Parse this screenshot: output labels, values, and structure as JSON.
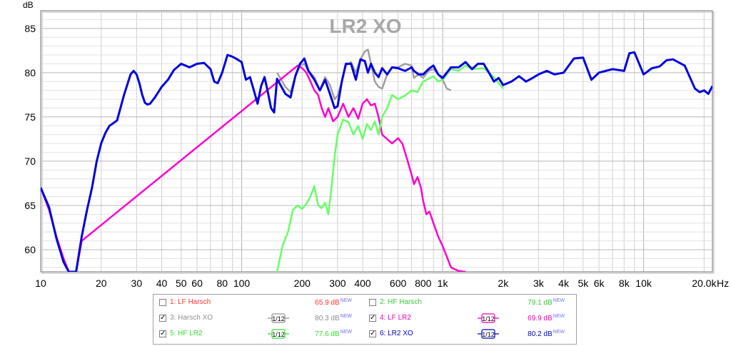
{
  "chart_data": {
    "type": "line",
    "title": "LR2 XO",
    "ylabel": "dB",
    "xlabel": "Hz",
    "xscale": "log",
    "xlim": [
      10,
      22000
    ],
    "ylim": [
      57.5,
      87
    ],
    "grid": true,
    "y_ticks": [
      {
        "v": 60,
        "label": "60"
      },
      {
        "v": 65,
        "label": "65"
      },
      {
        "v": 70,
        "label": "70"
      },
      {
        "v": 75,
        "label": "75"
      },
      {
        "v": 80,
        "label": "80"
      },
      {
        "v": 85,
        "label": "85"
      }
    ],
    "x_ticks": [
      {
        "v": 10,
        "label": "10"
      },
      {
        "v": 20,
        "label": "20"
      },
      {
        "v": 30,
        "label": "30"
      },
      {
        "v": 40,
        "label": "40"
      },
      {
        "v": 50,
        "label": "50"
      },
      {
        "v": 60,
        "label": "60"
      },
      {
        "v": 80,
        "label": "80"
      },
      {
        "v": 100,
        "label": "100"
      },
      {
        "v": 200,
        "label": "200"
      },
      {
        "v": 300,
        "label": "300"
      },
      {
        "v": 400,
        "label": "400"
      },
      {
        "v": 600,
        "label": "600"
      },
      {
        "v": 800,
        "label": "800"
      },
      {
        "v": 1000,
        "label": "1k"
      },
      {
        "v": 2000,
        "label": "2k"
      },
      {
        "v": 3000,
        "label": "3k"
      },
      {
        "v": 4000,
        "label": "4k"
      },
      {
        "v": 5000,
        "label": "5k"
      },
      {
        "v": 6000,
        "label": "6k"
      },
      {
        "v": 8000,
        "label": "8k"
      },
      {
        "v": 10000,
        "label": "10k"
      },
      {
        "v": 20000,
        "label": "20.0k"
      }
    ],
    "series": [
      {
        "name": "3: Harsch XO",
        "color": "#a0a0a0",
        "x": [
          150,
          165,
          175,
          185,
          195,
          205,
          215,
          230,
          245,
          260,
          275,
          290,
          300,
          315,
          330,
          350,
          370,
          390,
          410,
          425,
          440,
          460,
          480,
          500,
          530,
          560,
          600,
          650,
          700,
          720,
          760,
          800,
          850,
          900,
          950,
          1000,
          1050,
          1100
        ],
        "values": [
          80.0,
          78.4,
          77.8,
          79.6,
          80.8,
          81.0,
          80.2,
          79.5,
          78.0,
          79.5,
          78.6,
          77.0,
          77.4,
          79.0,
          80.8,
          81.2,
          80.0,
          81.5,
          82.4,
          82.6,
          81.0,
          79.0,
          78.4,
          78.2,
          79.8,
          80.6,
          80.6,
          81.0,
          80.8,
          79.4,
          79.8,
          79.4,
          80.2,
          80.4,
          79.8,
          79.2,
          78.2,
          78.0
        ]
      },
      {
        "name": "4: LF LR2",
        "color": "#ff00cc",
        "x": [
          10,
          11,
          12,
          13,
          13.8,
          15,
          16,
          190,
          200,
          210,
          220,
          230,
          240,
          250,
          260,
          270,
          285,
          300,
          320,
          340,
          360,
          380,
          400,
          420,
          440,
          460,
          480,
          500,
          530,
          560,
          600,
          630,
          660,
          700,
          720,
          750,
          780,
          800,
          830,
          860,
          900,
          950,
          1000,
          1050,
          1100,
          1200,
          1300
        ],
        "values": [
          67.0,
          64.5,
          61.4,
          59.0,
          57.5,
          57.5,
          61.0,
          80.8,
          80.5,
          80.0,
          79.0,
          78.0,
          77.5,
          76.0,
          75.0,
          76.0,
          74.5,
          75.0,
          76.5,
          75.0,
          76.0,
          74.8,
          76.5,
          77.0,
          76.3,
          76.5,
          75.0,
          73.0,
          72.5,
          72.0,
          72.6,
          72.0,
          70.5,
          68.5,
          67.4,
          68.2,
          67.0,
          65.5,
          64.0,
          64.3,
          63.0,
          61.5,
          60.4,
          59.2,
          58.0,
          57.6,
          57.5
        ]
      },
      {
        "name": "5: HF LR2",
        "color": "#66ff66",
        "x": [
          150,
          160,
          170,
          180,
          190,
          200,
          210,
          220,
          230,
          240,
          250,
          260,
          270,
          280,
          290,
          300,
          320,
          340,
          360,
          380,
          400,
          420,
          440,
          460,
          480,
          500,
          530,
          560,
          600,
          650,
          700,
          750,
          800,
          850,
          900,
          950,
          1000,
          1100,
          1200,
          1300,
          1400,
          1600,
          1800,
          2000
        ],
        "values": [
          57.5,
          60.5,
          62.0,
          64.5,
          65.0,
          64.6,
          65.2,
          66.0,
          67.2,
          65.0,
          64.7,
          65.3,
          64.0,
          67.0,
          70.5,
          73.0,
          74.7,
          74.4,
          73.0,
          74.0,
          72.5,
          74.2,
          73.5,
          74.5,
          73.0,
          75.0,
          76.0,
          77.5,
          77.0,
          77.4,
          78.0,
          77.8,
          79.0,
          79.3,
          79.6,
          79.0,
          79.2,
          80.4,
          80.2,
          80.8,
          80.4,
          80.5,
          79.5,
          78.2
        ]
      },
      {
        "name": "6: LR2 XO",
        "color": "#0000dd",
        "x": [
          10,
          11,
          12,
          13,
          13.8,
          15,
          16,
          17,
          18,
          19,
          20,
          21,
          22,
          23,
          24,
          26,
          28,
          29,
          30,
          31,
          32,
          33,
          34,
          35,
          37,
          40,
          43,
          46,
          50,
          55,
          60,
          65,
          70,
          73,
          76,
          80,
          85,
          90,
          95,
          100,
          105,
          110,
          115,
          120,
          125,
          130,
          135,
          140,
          145,
          150,
          165,
          175,
          185,
          195,
          205,
          215,
          230,
          245,
          260,
          275,
          290,
          300,
          315,
          330,
          350,
          370,
          390,
          410,
          425,
          440,
          460,
          480,
          500,
          530,
          560,
          600,
          650,
          700,
          720,
          760,
          800,
          850,
          900,
          950,
          1000,
          1100,
          1200,
          1300,
          1400,
          1500,
          1600,
          1700,
          1800,
          1900,
          2000,
          2200,
          2400,
          2600,
          2800,
          3000,
          3300,
          3600,
          4000,
          4500,
          5000,
          5500,
          6000,
          7000,
          8000,
          8500,
          9000,
          10000,
          11000,
          12000,
          13000,
          14000,
          16000,
          18000,
          19000,
          20000,
          21000,
          22000
        ],
        "values": [
          67.0,
          64.8,
          61.2,
          58.6,
          57.5,
          57.5,
          61.5,
          64.5,
          67.0,
          70.0,
          72.0,
          73.2,
          74.0,
          74.3,
          74.6,
          77.5,
          79.8,
          80.2,
          79.8,
          78.8,
          77.5,
          76.6,
          76.4,
          76.5,
          77.2,
          78.4,
          79.2,
          80.3,
          81.0,
          80.6,
          81.0,
          81.1,
          80.4,
          79.0,
          78.8,
          80.0,
          82.0,
          81.8,
          81.5,
          81.2,
          79.2,
          79.5,
          78.0,
          76.5,
          78.5,
          79.5,
          77.8,
          76.0,
          75.5,
          79.3,
          77.6,
          77.2,
          79.6,
          81.0,
          81.6,
          80.2,
          79.2,
          78.0,
          79.2,
          77.6,
          76.0,
          76.2,
          79.0,
          81.0,
          81.0,
          79.2,
          81.5,
          81.3,
          80.0,
          81.0,
          80.0,
          79.5,
          80.5,
          79.8,
          80.6,
          80.5,
          80.2,
          80.6,
          80.2,
          79.8,
          79.8,
          80.4,
          80.8,
          79.8,
          79.4,
          80.6,
          80.6,
          81.2,
          80.4,
          81.0,
          81.0,
          80.0,
          79.0,
          79.4,
          78.6,
          79.0,
          79.6,
          79.0,
          79.4,
          79.8,
          80.2,
          79.8,
          80.0,
          81.6,
          81.7,
          79.2,
          80.0,
          80.4,
          80.2,
          82.2,
          82.3,
          79.8,
          80.5,
          80.7,
          81.4,
          81.5,
          80.8,
          78.2,
          77.8,
          78.0,
          77.6,
          78.5
        ]
      }
    ]
  },
  "legend": {
    "items": [
      {
        "id": 1,
        "label": "1: LF Harsch",
        "checked": false,
        "color": "#ff3333",
        "smoothing": "",
        "value": "65.9 dB",
        "value_sup": "NEW"
      },
      {
        "id": 2,
        "label": "2: HF Harsch",
        "checked": false,
        "color": "#33cc33",
        "smoothing": "",
        "value": "79.1 dB",
        "value_sup": "NEW"
      },
      {
        "id": 3,
        "label": "3: Harsch XO",
        "checked": true,
        "color": "#909090",
        "smoothing": "1/12",
        "value": "80.3 dB",
        "value_sup": "NEW"
      },
      {
        "id": 4,
        "label": "4: LF LR2",
        "checked": true,
        "color": "#ee00bb",
        "smoothing": "1/12",
        "value": "69.9 dB",
        "value_sup": "NEW"
      },
      {
        "id": 5,
        "label": "5: HF LR2",
        "checked": true,
        "color": "#33dd33",
        "smoothing": "1/12",
        "value": "77.6 dB",
        "value_sup": "NEW"
      },
      {
        "id": 6,
        "label": "6: LR2 XO",
        "checked": true,
        "color": "#0000cc",
        "smoothing": "1/12",
        "value": "80.2 dB",
        "value_sup": "NEW"
      }
    ]
  }
}
